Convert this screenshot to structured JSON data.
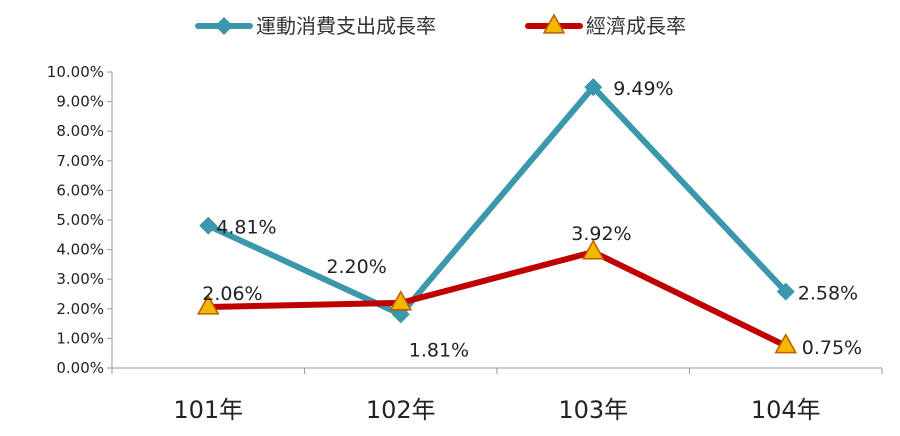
{
  "chart_data": {
    "type": "line",
    "categories": [
      "101年",
      "102年",
      "103年",
      "104年"
    ],
    "series": [
      {
        "name": "運動消費支出成長率",
        "values": [
          4.81,
          1.81,
          9.49,
          2.58
        ],
        "labels": [
          "4.81%",
          "1.81%",
          "9.49%",
          "2.58%"
        ],
        "color": "#3b97ab",
        "marker": "diamond"
      },
      {
        "name": "經濟成長率",
        "values": [
          2.06,
          2.2,
          3.92,
          0.75
        ],
        "labels": [
          "2.06%",
          "2.20%",
          "3.92%",
          "0.75%"
        ],
        "color": "#c00000",
        "marker": "triangle",
        "marker_fill": "#f5b800",
        "marker_stroke": "#c05a00"
      }
    ],
    "yticks": [
      "0.00%",
      "1.00%",
      "2.00%",
      "3.00%",
      "4.00%",
      "5.00%",
      "6.00%",
      "7.00%",
      "8.00%",
      "9.00%",
      "10.00%"
    ],
    "ylim": [
      0,
      10
    ],
    "grid": false,
    "legend": "top"
  }
}
